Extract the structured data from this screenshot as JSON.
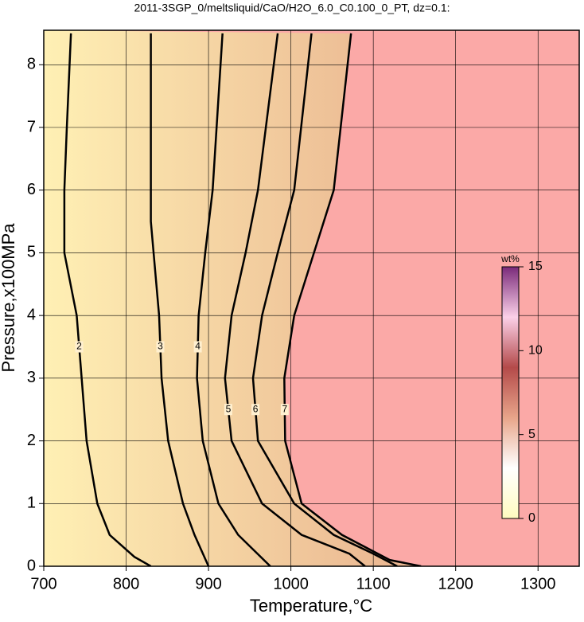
{
  "chart_data": {
    "type": "contour",
    "title": "2011-3SGP_0/meltsliquid/CaO/H2O_6.0_C0.100_0_PT, dz=0.1:",
    "xlabel": "Temperature,°C",
    "ylabel": "Pressure,x100MPa",
    "xlim": [
      700,
      1350
    ],
    "ylim": [
      0,
      8.55
    ],
    "xticks": [
      700,
      800,
      900,
      1000,
      1100,
      1200,
      1300
    ],
    "yticks": [
      0,
      1,
      2,
      3,
      4,
      5,
      6,
      7,
      8
    ],
    "grid": true,
    "line_color": "#000000",
    "fill_colors": [
      "#fff0b4",
      "#e9b38f"
    ],
    "outside_color": "#fba9a7",
    "contours": [
      {
        "level": 2,
        "x": [
          733,
          728,
          725,
          725,
          740,
          746,
          752,
          765,
          780,
          810,
          830
        ],
        "y": [
          8.5,
          7,
          6,
          5,
          4,
          3,
          2,
          1,
          0.5,
          0.15,
          0
        ]
      },
      {
        "level": 3,
        "x": [
          830,
          830,
          830,
          840,
          843,
          851,
          869,
          883,
          900
        ],
        "y": [
          8.5,
          6,
          5.5,
          4,
          3,
          2,
          1,
          0.5,
          0
        ]
      },
      {
        "level": 4,
        "x": [
          917,
          905,
          896,
          888,
          886,
          893,
          912,
          936,
          975
        ],
        "y": [
          8.5,
          6,
          5,
          4,
          3,
          2,
          1,
          0.5,
          0
        ]
      },
      {
        "level": 5,
        "x": [
          984,
          960,
          945,
          928,
          920,
          928,
          965,
          1013,
          1071,
          1090
        ],
        "y": [
          8.5,
          6,
          5,
          4,
          3,
          2,
          1,
          0.5,
          0.2,
          0
        ]
      },
      {
        "level": 6,
        "x": [
          1025,
          1004,
          984,
          965,
          954,
          960,
          1004,
          1052,
          1100,
          1129
        ],
        "y": [
          8.5,
          6,
          5,
          4,
          3,
          2,
          1,
          0.5,
          0.2,
          0
        ]
      },
      {
        "level": 7,
        "x": [
          1073,
          1052,
          1028,
          1004,
          992,
          993,
          1013,
          1062,
          1120,
          1158
        ],
        "y": [
          8.5,
          6,
          5,
          4,
          3,
          2,
          1,
          0.5,
          0.1,
          0
        ]
      }
    ],
    "colorbar": {
      "label": "wt%",
      "lim": [
        0,
        15
      ],
      "ticks": [
        0,
        5,
        10,
        15
      ],
      "colors": [
        "#fffbc0",
        "#ffffff",
        "#e8a58a",
        "#b44a4a",
        "#fbd0e8",
        "#7a2a7a"
      ]
    }
  }
}
